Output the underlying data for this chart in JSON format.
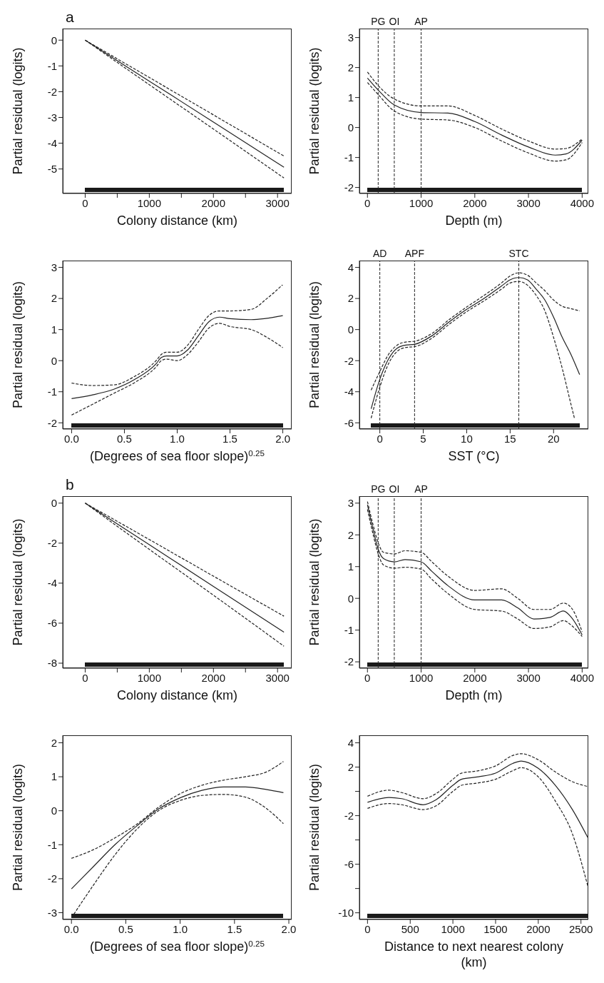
{
  "chart_data": [
    {
      "type": "line",
      "annotations": [
        "a"
      ],
      "xlabel": "Colony distance (km)",
      "ylabel": "Partial residual (logits)",
      "xlim": [
        -350,
        3220
      ],
      "xticks": [
        0,
        {
          "value": 500,
          "label": null
        },
        1000,
        {
          "value": 1500,
          "label": null
        },
        2000,
        {
          "value": 2500,
          "label": null
        },
        3000
      ],
      "ylim": [
        -5.95,
        0.45
      ],
      "yticks": [
        0,
        -1,
        -2,
        -3,
        -4,
        -5
      ],
      "series": [
        {
          "color": "#222222",
          "line_style": "solid",
          "x": [
            0,
            1000,
            2000,
            3100
          ],
          "values": [
            0,
            -1.59,
            -3.18,
            -4.93
          ]
        },
        {
          "color": "#222222",
          "line_style": "dashed",
          "x": [
            0,
            1000,
            2000,
            3100
          ],
          "values": [
            0,
            -1.45,
            -2.9,
            -4.5
          ]
        },
        {
          "color": "#222222",
          "line_style": "dashed",
          "x": [
            0,
            1000,
            2000,
            3100
          ],
          "values": [
            0,
            -1.73,
            -3.45,
            -5.35
          ]
        }
      ]
    },
    {
      "type": "line",
      "xlabel": "Depth (m)",
      "ylabel": "Partial residual (logits)",
      "xlim": [
        -150,
        4115
      ],
      "xticks": [
        0,
        1000,
        2000,
        3000,
        4000
      ],
      "ylim": [
        -2.2,
        3.3
      ],
      "yticks": [
        -2,
        -1,
        0,
        1,
        2,
        3
      ],
      "ref_lines": [
        {
          "axis": "x",
          "value": 200,
          "label": "PG",
          "line_style": "dashed"
        },
        {
          "axis": "x",
          "value": 500,
          "label": "OI",
          "line_style": "dashed"
        },
        {
          "axis": "x",
          "value": 1000,
          "label": "AP",
          "line_style": "dashed"
        }
      ],
      "series": [
        {
          "color": "#222222",
          "line_style": "solid",
          "x": [
            0,
            200,
            500,
            1000,
            1500,
            2000,
            2500,
            3000,
            3500,
            3700,
            4000
          ],
          "values": [
            1.65,
            1.25,
            0.75,
            0.5,
            0.48,
            0.2,
            -0.25,
            -0.65,
            -0.92,
            -0.88,
            -0.42
          ]
        },
        {
          "color": "#222222",
          "line_style": "dashed",
          "x": [
            0,
            200,
            500,
            1000,
            1500,
            2000,
            2500,
            3000,
            3500,
            3700,
            4000
          ],
          "values": [
            1.85,
            1.4,
            0.95,
            0.72,
            0.72,
            0.4,
            -0.05,
            -0.45,
            -0.72,
            -0.7,
            -0.38
          ]
        },
        {
          "color": "#222222",
          "line_style": "dashed",
          "x": [
            0,
            200,
            500,
            1000,
            1500,
            2000,
            2500,
            3000,
            3500,
            3700,
            4000
          ],
          "values": [
            1.5,
            1.1,
            0.55,
            0.28,
            0.25,
            0.0,
            -0.45,
            -0.85,
            -1.12,
            -1.08,
            -0.5
          ]
        }
      ]
    },
    {
      "type": "line",
      "xlabel": "(Degrees of sea floor slope)$^{0.25}$",
      "ylabel": "Partial residual (logits)",
      "xlim": [
        -0.084,
        2.084
      ],
      "xticks": [
        {
          "value": 0,
          "label": "0.0"
        },
        0.5,
        {
          "value": 1,
          "label": "1.0"
        },
        1.5,
        {
          "value": 2,
          "label": "2.0"
        }
      ],
      "ylim": [
        -2.2,
        3.22
      ],
      "yticks": [
        -2,
        -1,
        0,
        1,
        2,
        3
      ],
      "series": [
        {
          "color": "#222222",
          "line_style": "solid",
          "x": [
            0,
            0.2,
            0.4,
            0.6,
            0.8,
            0.85,
            0.9,
            1.0,
            1.1,
            1.2,
            1.3,
            1.4,
            1.5,
            1.7,
            2.0
          ],
          "values": [
            -1.22,
            -1.1,
            -0.92,
            -0.6,
            -0.1,
            0.1,
            0.15,
            0.15,
            0.35,
            0.8,
            1.25,
            1.4,
            1.35,
            1.32,
            1.45
          ]
        },
        {
          "color": "#222222",
          "line_style": "dashed",
          "x": [
            0,
            0.2,
            0.4,
            0.6,
            0.8,
            0.85,
            0.9,
            1.0,
            1.1,
            1.2,
            1.3,
            1.4,
            1.5,
            1.7,
            1.85,
            2.0
          ],
          "values": [
            -0.72,
            -0.8,
            -0.78,
            -0.5,
            0.0,
            0.2,
            0.27,
            0.27,
            0.5,
            1.0,
            1.45,
            1.6,
            1.6,
            1.65,
            2.0,
            2.45
          ]
        },
        {
          "color": "#222222",
          "line_style": "dashed",
          "x": [
            0,
            0.2,
            0.4,
            0.6,
            0.8,
            0.85,
            0.9,
            1.0,
            1.1,
            1.2,
            1.3,
            1.4,
            1.5,
            1.7,
            1.85,
            2.0
          ],
          "values": [
            -1.75,
            -1.4,
            -1.05,
            -0.7,
            -0.2,
            0.0,
            0.05,
            0.0,
            0.2,
            0.6,
            1.05,
            1.2,
            1.1,
            1.0,
            0.75,
            0.42
          ]
        }
      ]
    },
    {
      "type": "line",
      "xlabel": "SST (°C)",
      "ylabel": "Partial residual (logits)",
      "xlim": [
        -2.35,
        24
      ],
      "xticks": [
        0,
        5,
        10,
        15,
        20
      ],
      "ylim": [
        -6.4,
        4.44
      ],
      "yticks": [
        -6,
        -4,
        -2,
        0,
        2,
        4
      ],
      "ref_lines": [
        {
          "axis": "x",
          "value": 0,
          "label": "AD",
          "line_style": "dashed"
        },
        {
          "axis": "x",
          "value": 4,
          "label": "APF",
          "line_style": "dashed"
        },
        {
          "axis": "x",
          "value": 16,
          "label": "STC",
          "line_style": "dashed"
        }
      ],
      "series": [
        {
          "color": "#222222",
          "line_style": "solid",
          "x": [
            -1,
            0,
            1,
            2,
            3,
            4,
            6,
            8,
            10,
            12,
            14,
            15,
            16,
            17,
            18,
            19,
            20,
            21,
            22,
            23
          ],
          "values": [
            -5.1,
            -3.2,
            -1.9,
            -1.2,
            -1.0,
            -0.95,
            -0.4,
            0.5,
            1.3,
            2.0,
            2.8,
            3.2,
            3.35,
            3.2,
            2.6,
            1.9,
            0.8,
            -0.5,
            -1.6,
            -2.9
          ]
        },
        {
          "color": "#222222",
          "line_style": "dashed",
          "x": [
            -1,
            0,
            1,
            2,
            3,
            4,
            6,
            8,
            10,
            12,
            14,
            15,
            16,
            17,
            18,
            19,
            20,
            21,
            22,
            23
          ],
          "values": [
            -3.9,
            -2.7,
            -1.6,
            -1.0,
            -0.8,
            -0.75,
            -0.25,
            0.65,
            1.45,
            2.2,
            3.0,
            3.45,
            3.65,
            3.5,
            3.0,
            2.5,
            1.9,
            1.5,
            1.35,
            1.2
          ]
        },
        {
          "color": "#222222",
          "line_style": "dashed",
          "x": [
            -1,
            0,
            1,
            2,
            3,
            4,
            6,
            8,
            10,
            12,
            14,
            15,
            16,
            17,
            18,
            19,
            20,
            21,
            22,
            22.4
          ],
          "values": [
            -5.7,
            -3.7,
            -2.2,
            -1.4,
            -1.15,
            -1.1,
            -0.55,
            0.35,
            1.15,
            1.85,
            2.6,
            3.0,
            3.1,
            2.85,
            2.2,
            1.2,
            -0.5,
            -2.5,
            -4.8,
            -5.7
          ]
        }
      ]
    },
    {
      "type": "line",
      "annotations": [
        "b"
      ],
      "xlabel": "Colony distance (km)",
      "ylabel": "Partial residual (logits)",
      "xlim": [
        -350,
        3220
      ],
      "xticks": [
        0,
        {
          "value": 500,
          "label": null
        },
        1000,
        {
          "value": 1500,
          "label": null
        },
        2000,
        {
          "value": 2500,
          "label": null
        },
        3000
      ],
      "ylim": [
        -8.25,
        0.35
      ],
      "yticks": [
        0,
        -2,
        -4,
        -6,
        -8
      ],
      "series": [
        {
          "color": "#222222",
          "line_style": "solid",
          "x": [
            0,
            1000,
            2000,
            3100
          ],
          "values": [
            0,
            -2.08,
            -4.16,
            -6.45
          ]
        },
        {
          "color": "#222222",
          "line_style": "dashed",
          "x": [
            0,
            1000,
            2000,
            3100
          ],
          "values": [
            0,
            -1.82,
            -3.65,
            -5.65
          ]
        },
        {
          "color": "#222222",
          "line_style": "dashed",
          "x": [
            0,
            1000,
            2000,
            3100
          ],
          "values": [
            0,
            -2.31,
            -4.6,
            -7.15
          ]
        }
      ]
    },
    {
      "type": "line",
      "xlabel": "Depth (m)",
      "ylabel": "Partial residual (logits)",
      "xlim": [
        -150,
        4115
      ],
      "xticks": [
        0,
        1000,
        2000,
        3000,
        4000
      ],
      "ylim": [
        -2.2,
        3.22
      ],
      "yticks": [
        -2,
        -1,
        0,
        1,
        2,
        3
      ],
      "ref_lines": [
        {
          "axis": "x",
          "value": 200,
          "label": "PG",
          "line_style": "dashed"
        },
        {
          "axis": "x",
          "value": 500,
          "label": "OI",
          "line_style": "dashed"
        },
        {
          "axis": "x",
          "value": 1000,
          "label": "AP",
          "line_style": "dashed"
        }
      ],
      "series": [
        {
          "color": "#222222",
          "line_style": "solid",
          "x": [
            0,
            100,
            200,
            300,
            500,
            700,
            1000,
            1200,
            1500,
            2000,
            2500,
            2800,
            3100,
            3400,
            3650,
            3800,
            4000
          ],
          "values": [
            2.95,
            2.2,
            1.55,
            1.25,
            1.15,
            1.22,
            1.15,
            0.85,
            0.4,
            -0.05,
            -0.05,
            -0.3,
            -0.65,
            -0.6,
            -0.4,
            -0.6,
            -1.15
          ]
        },
        {
          "color": "#222222",
          "line_style": "dashed",
          "x": [
            0,
            100,
            200,
            300,
            500,
            700,
            1000,
            1200,
            1500,
            2000,
            2500,
            2800,
            3100,
            3400,
            3650,
            3800,
            4000
          ],
          "values": [
            3.05,
            2.35,
            1.75,
            1.45,
            1.4,
            1.5,
            1.45,
            1.15,
            0.7,
            0.25,
            0.3,
            0.0,
            -0.35,
            -0.35,
            -0.15,
            -0.3,
            -1.05
          ]
        },
        {
          "color": "#222222",
          "line_style": "dashed",
          "x": [
            0,
            100,
            200,
            300,
            500,
            700,
            1000,
            1200,
            1500,
            2000,
            2500,
            2800,
            3100,
            3400,
            3650,
            3800,
            4000
          ],
          "values": [
            2.8,
            2.05,
            1.4,
            1.05,
            0.95,
            0.98,
            0.92,
            0.6,
            0.15,
            -0.35,
            -0.4,
            -0.65,
            -0.95,
            -0.9,
            -0.7,
            -0.85,
            -1.2
          ]
        }
      ]
    },
    {
      "type": "line",
      "xlabel": "(Degrees of sea floor slope)$^{0.25}$",
      "ylabel": "Partial residual (logits)",
      "xlim": [
        -0.08,
        2.026
      ],
      "xticks": [
        {
          "value": 0,
          "label": "0.0"
        },
        0.5,
        {
          "value": 1,
          "label": "1.0"
        },
        1.5,
        {
          "value": 2,
          "label": "2.0"
        }
      ],
      "ylim": [
        -3.2,
        2.22
      ],
      "yticks": [
        -3,
        -2,
        -1,
        0,
        1,
        2
      ],
      "series": [
        {
          "color": "#222222",
          "line_style": "solid",
          "x": [
            0,
            0.2,
            0.4,
            0.6,
            0.8,
            1.0,
            1.2,
            1.4,
            1.6,
            1.8,
            1.95
          ],
          "values": [
            -2.3,
            -1.65,
            -1.0,
            -0.45,
            0.05,
            0.38,
            0.6,
            0.7,
            0.7,
            0.62,
            0.53
          ]
        },
        {
          "color": "#222222",
          "line_style": "dashed",
          "x": [
            0,
            0.2,
            0.4,
            0.6,
            0.8,
            1.0,
            1.2,
            1.4,
            1.6,
            1.8,
            1.95
          ],
          "values": [
            -1.4,
            -1.15,
            -0.8,
            -0.4,
            0.1,
            0.5,
            0.75,
            0.9,
            1.0,
            1.15,
            1.45
          ]
        },
        {
          "color": "#222222",
          "line_style": "dashed",
          "x": [
            0,
            0.2,
            0.4,
            0.6,
            0.8,
            1.0,
            1.2,
            1.4,
            1.6,
            1.8,
            1.95
          ],
          "values": [
            -3.15,
            -2.2,
            -1.3,
            -0.55,
            0.0,
            0.3,
            0.45,
            0.48,
            0.4,
            0.05,
            -0.38
          ]
        }
      ]
    },
    {
      "type": "line",
      "xlabel": "Distance to next nearest colony (km)",
      "ylabel": "Partial residual (logits)",
      "xlim": [
        -95,
        2586
      ],
      "xticks": [
        0,
        500,
        1000,
        1500,
        2000,
        2500
      ],
      "ylim": [
        -10.55,
        4.62
      ],
      "yticks": [
        4,
        2,
        {
          "value": 0,
          "label": null
        },
        -2,
        {
          "value": -4,
          "label": null
        },
        -6,
        {
          "value": -8,
          "label": null
        },
        -10
      ],
      "series": [
        {
          "color": "#222222",
          "line_style": "solid",
          "x": [
            0,
            250,
            400,
            650,
            800,
            1000,
            1100,
            1300,
            1500,
            1700,
            1800,
            2000,
            2200,
            2400,
            2580
          ],
          "values": [
            -0.9,
            -0.5,
            -0.6,
            -1.1,
            -0.7,
            0.5,
            1.0,
            1.2,
            1.5,
            2.3,
            2.5,
            1.9,
            0.5,
            -1.5,
            -3.8
          ]
        },
        {
          "color": "#222222",
          "line_style": "dashed",
          "x": [
            0,
            250,
            400,
            650,
            800,
            1000,
            1100,
            1300,
            1500,
            1700,
            1800,
            2000,
            2200,
            2400,
            2580
          ],
          "values": [
            -0.4,
            0.1,
            -0.1,
            -0.6,
            -0.2,
            1.0,
            1.5,
            1.7,
            2.1,
            2.95,
            3.1,
            2.6,
            1.6,
            0.8,
            0.4
          ]
        },
        {
          "color": "#222222",
          "line_style": "dashed",
          "x": [
            0,
            250,
            400,
            650,
            800,
            1000,
            1100,
            1300,
            1500,
            1700,
            1800,
            2000,
            2200,
            2400,
            2580
          ],
          "values": [
            -1.4,
            -1.0,
            -1.1,
            -1.5,
            -1.2,
            0.0,
            0.5,
            0.7,
            1.0,
            1.7,
            1.95,
            1.2,
            -0.8,
            -3.5,
            -7.8
          ]
        }
      ]
    }
  ]
}
